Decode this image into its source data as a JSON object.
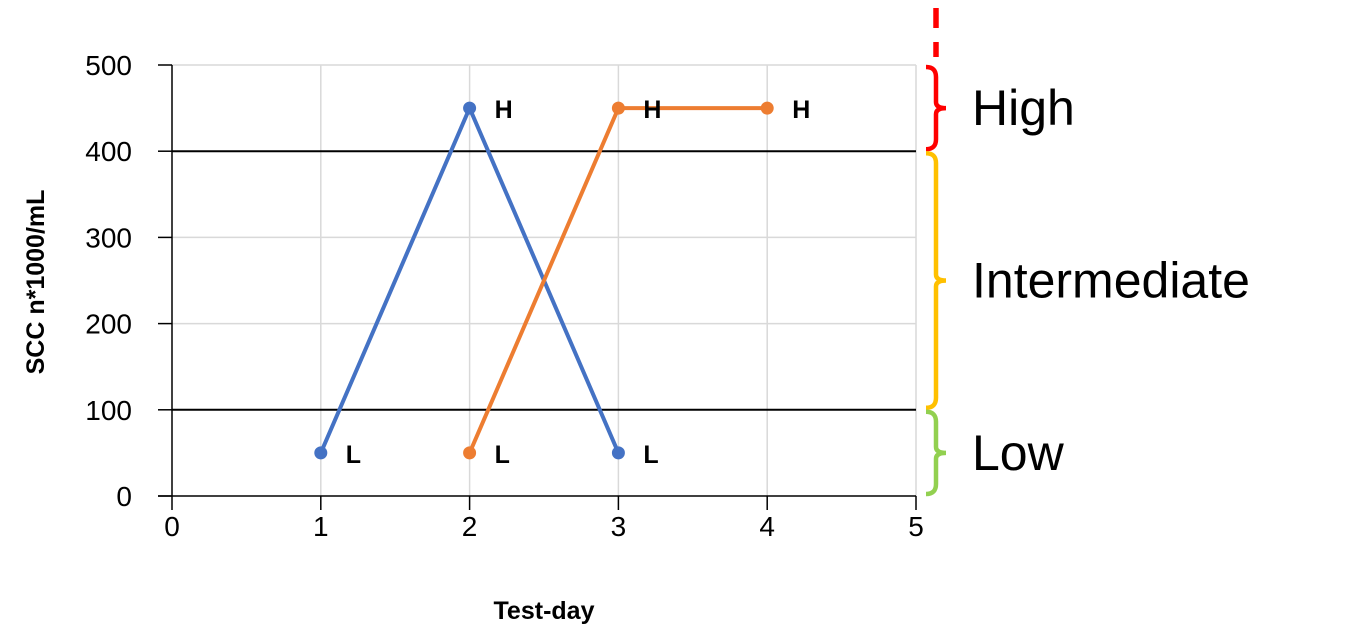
{
  "chart_data": {
    "type": "line",
    "xlabel": "Test-day",
    "ylabel": "SCC n*1000/mL",
    "xlim": [
      0,
      5
    ],
    "ylim": [
      0,
      500
    ],
    "x_ticks": [
      0,
      1,
      2,
      3,
      4,
      5
    ],
    "y_ticks": [
      0,
      100,
      200,
      300,
      400,
      500
    ],
    "grid": true,
    "threshold_lines": [
      100,
      400
    ],
    "series": [
      {
        "color": "#4472C4",
        "points": [
          {
            "x": 1,
            "y": 50,
            "label": "L"
          },
          {
            "x": 2,
            "y": 450,
            "label": "H"
          },
          {
            "x": 3,
            "y": 50,
            "label": "L"
          }
        ]
      },
      {
        "color": "#ED7D31",
        "points": [
          {
            "x": 2,
            "y": 50,
            "label": "L"
          },
          {
            "x": 3,
            "y": 450,
            "label": "H"
          },
          {
            "x": 4,
            "y": 450,
            "label": "H"
          }
        ]
      }
    ],
    "bands": [
      {
        "label": "High",
        "from": 400,
        "to": 500,
        "color": "#FF0000"
      },
      {
        "label": "Intermediate",
        "from": 100,
        "to": 400,
        "color": "#FFC000"
      },
      {
        "label": "Low",
        "from": 0,
        "to": 100,
        "color": "#92D050"
      }
    ]
  }
}
